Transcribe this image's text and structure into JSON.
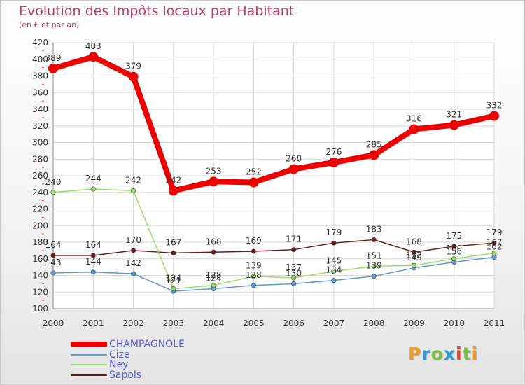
{
  "header": {
    "title": "Evolution des Impôts locaux par Habitant",
    "subtitle": "(en € et par an)"
  },
  "logo_text": "Proxiti",
  "logo_colors": [
    "#f29b1f",
    "#2f9bd6",
    "#7bbf3a",
    "#2f9bd6",
    "#e8442a",
    "#7bbf3a",
    "#f29b1f"
  ],
  "chart_data": {
    "type": "line",
    "title": "Evolution des Impôts locaux par Habitant",
    "subtitle": "(en € et par an)",
    "xlabel": "",
    "ylabel": "",
    "x": [
      "2000",
      "2001",
      "2002",
      "2003",
      "2004",
      "2005",
      "2006",
      "2007",
      "2008",
      "2009",
      "2010",
      "2011"
    ],
    "ylim": [
      100,
      420
    ],
    "yticks": [
      100,
      120,
      140,
      160,
      180,
      200,
      220,
      240,
      260,
      280,
      300,
      320,
      340,
      360,
      380,
      400,
      420
    ],
    "grid": true,
    "legend_position": "bottom-left",
    "series": [
      {
        "name": "CHAMPAGNOLE",
        "color": "#ee0000",
        "values": [
          389,
          403,
          379,
          242,
          253,
          252,
          268,
          276,
          285,
          316,
          321,
          332
        ],
        "labels": [
          "389",
          "403",
          "379",
          "242",
          "253",
          "252",
          "268",
          "276",
          "285",
          "316",
          "321",
          "332"
        ]
      },
      {
        "name": "Cize",
        "color": "#5b9bd5",
        "values": [
          143,
          144,
          142,
          121,
          124,
          128,
          130,
          134,
          139,
          149,
          156,
          162
        ],
        "labels": [
          "143",
          "144",
          "142",
          "121",
          "124",
          "128",
          "130",
          "134",
          "139",
          "149",
          "156",
          "162"
        ]
      },
      {
        "name": "Ney",
        "color": "#99dd66",
        "values": [
          240,
          244,
          242,
          124,
          128,
          139,
          137,
          145,
          151,
          152,
          160,
          167
        ],
        "labels": [
          "240",
          "244",
          "242",
          "124",
          "128",
          "139",
          "137",
          "145",
          "151",
          "152",
          "160",
          "167"
        ]
      },
      {
        "name": "Sapois",
        "color": "#6b1a1a",
        "values": [
          164,
          164,
          170,
          167,
          168,
          169,
          171,
          179,
          183,
          168,
          175,
          179
        ],
        "labels": [
          "164",
          "164",
          "170",
          "167",
          "168",
          "169",
          "171",
          "179",
          "183",
          "168",
          "175",
          "179"
        ]
      }
    ]
  }
}
